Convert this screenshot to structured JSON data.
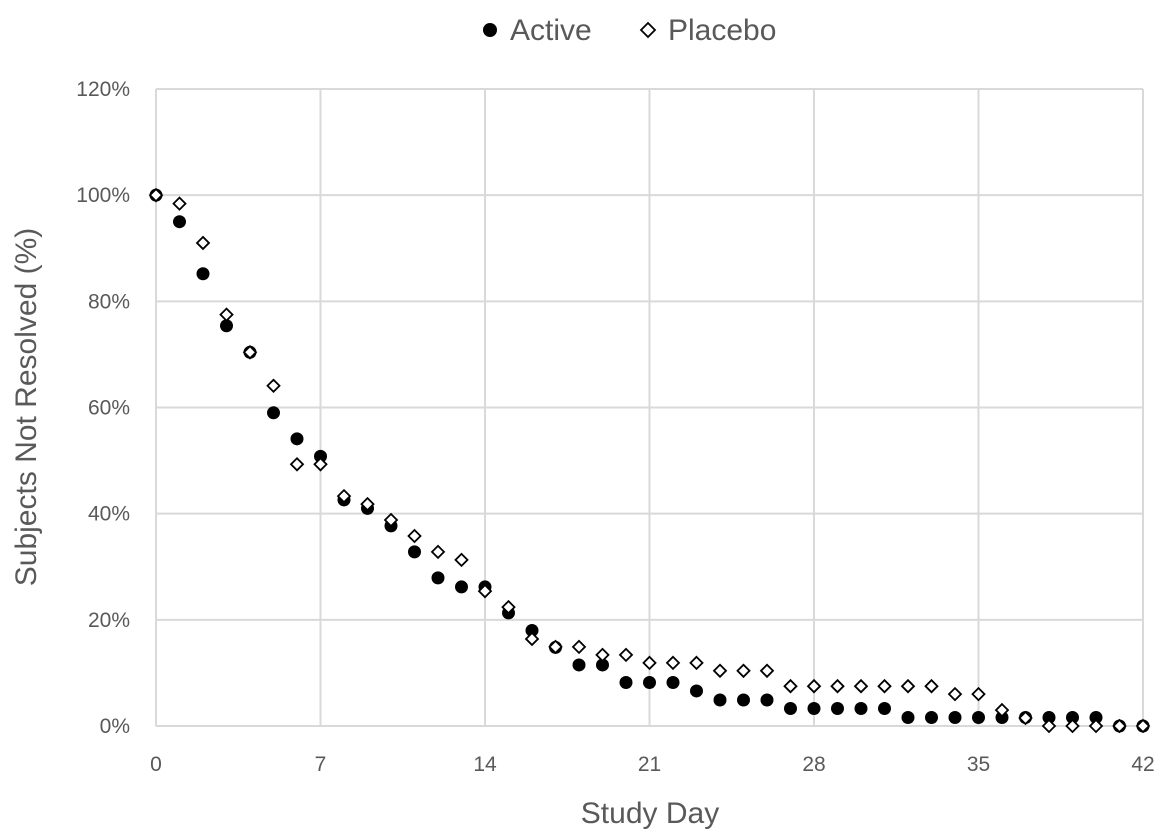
{
  "chart_data": {
    "type": "scatter",
    "xlabel": "Study Day",
    "ylabel": "Subjects Not Resolved (%)",
    "xlim": [
      0,
      42
    ],
    "ylim": [
      0,
      120
    ],
    "x_ticks": [
      0,
      7,
      14,
      21,
      28,
      35,
      42
    ],
    "y_ticks": [
      0,
      20,
      40,
      60,
      80,
      100,
      120
    ],
    "y_tick_labels": [
      "0%",
      "20%",
      "40%",
      "60%",
      "80%",
      "100%",
      "120%"
    ],
    "grid": true,
    "legend_position": "top",
    "series": [
      {
        "name": "Active",
        "marker": "filled-circle",
        "color": "#000000",
        "points": [
          [
            0,
            100
          ],
          [
            1,
            95
          ],
          [
            2,
            85.2
          ],
          [
            3,
            75.4
          ],
          [
            4,
            70.4
          ],
          [
            5,
            59
          ],
          [
            6,
            54.1
          ],
          [
            7,
            50.8
          ],
          [
            8,
            42.6
          ],
          [
            9,
            41
          ],
          [
            10,
            37.7
          ],
          [
            11,
            32.8
          ],
          [
            12,
            27.9
          ],
          [
            13,
            26.2
          ],
          [
            14,
            26.2
          ],
          [
            15,
            21.3
          ],
          [
            16,
            18
          ],
          [
            17,
            14.8
          ],
          [
            18,
            11.5
          ],
          [
            19,
            11.5
          ],
          [
            20,
            8.2
          ],
          [
            21,
            8.2
          ],
          [
            22,
            8.2
          ],
          [
            23,
            6.6
          ],
          [
            24,
            4.9
          ],
          [
            25,
            4.9
          ],
          [
            26,
            4.9
          ],
          [
            27,
            3.3
          ],
          [
            28,
            3.3
          ],
          [
            29,
            3.3
          ],
          [
            30,
            3.3
          ],
          [
            31,
            3.3
          ],
          [
            32,
            1.6
          ],
          [
            33,
            1.6
          ],
          [
            34,
            1.6
          ],
          [
            35,
            1.6
          ],
          [
            36,
            1.6
          ],
          [
            37,
            1.6
          ],
          [
            38,
            1.6
          ],
          [
            39,
            1.6
          ],
          [
            40,
            1.6
          ],
          [
            41,
            0
          ],
          [
            42,
            0
          ]
        ]
      },
      {
        "name": "Placebo",
        "marker": "open-diamond",
        "color": "#000000",
        "points": [
          [
            0,
            100
          ],
          [
            1,
            98.4
          ],
          [
            2,
            91
          ],
          [
            3,
            77.5
          ],
          [
            4,
            70.4
          ],
          [
            5,
            64.1
          ],
          [
            6,
            49.3
          ],
          [
            7,
            49.3
          ],
          [
            8,
            43.3
          ],
          [
            9,
            41.8
          ],
          [
            10,
            38.8
          ],
          [
            11,
            35.8
          ],
          [
            12,
            32.8
          ],
          [
            13,
            31.3
          ],
          [
            14,
            25.4
          ],
          [
            15,
            22.4
          ],
          [
            16,
            16.4
          ],
          [
            17,
            14.9
          ],
          [
            18,
            14.9
          ],
          [
            19,
            13.4
          ],
          [
            20,
            13.4
          ],
          [
            21,
            11.9
          ],
          [
            22,
            11.9
          ],
          [
            23,
            11.9
          ],
          [
            24,
            10.4
          ],
          [
            25,
            10.4
          ],
          [
            26,
            10.4
          ],
          [
            27,
            7.5
          ],
          [
            28,
            7.5
          ],
          [
            29,
            7.5
          ],
          [
            30,
            7.5
          ],
          [
            31,
            7.5
          ],
          [
            32,
            7.5
          ],
          [
            33,
            7.5
          ],
          [
            34,
            6
          ],
          [
            35,
            6
          ],
          [
            36,
            3
          ],
          [
            37,
            1.5
          ],
          [
            38,
            0
          ],
          [
            39,
            0
          ],
          [
            40,
            0
          ],
          [
            41,
            0
          ],
          [
            42,
            0
          ]
        ]
      }
    ]
  }
}
